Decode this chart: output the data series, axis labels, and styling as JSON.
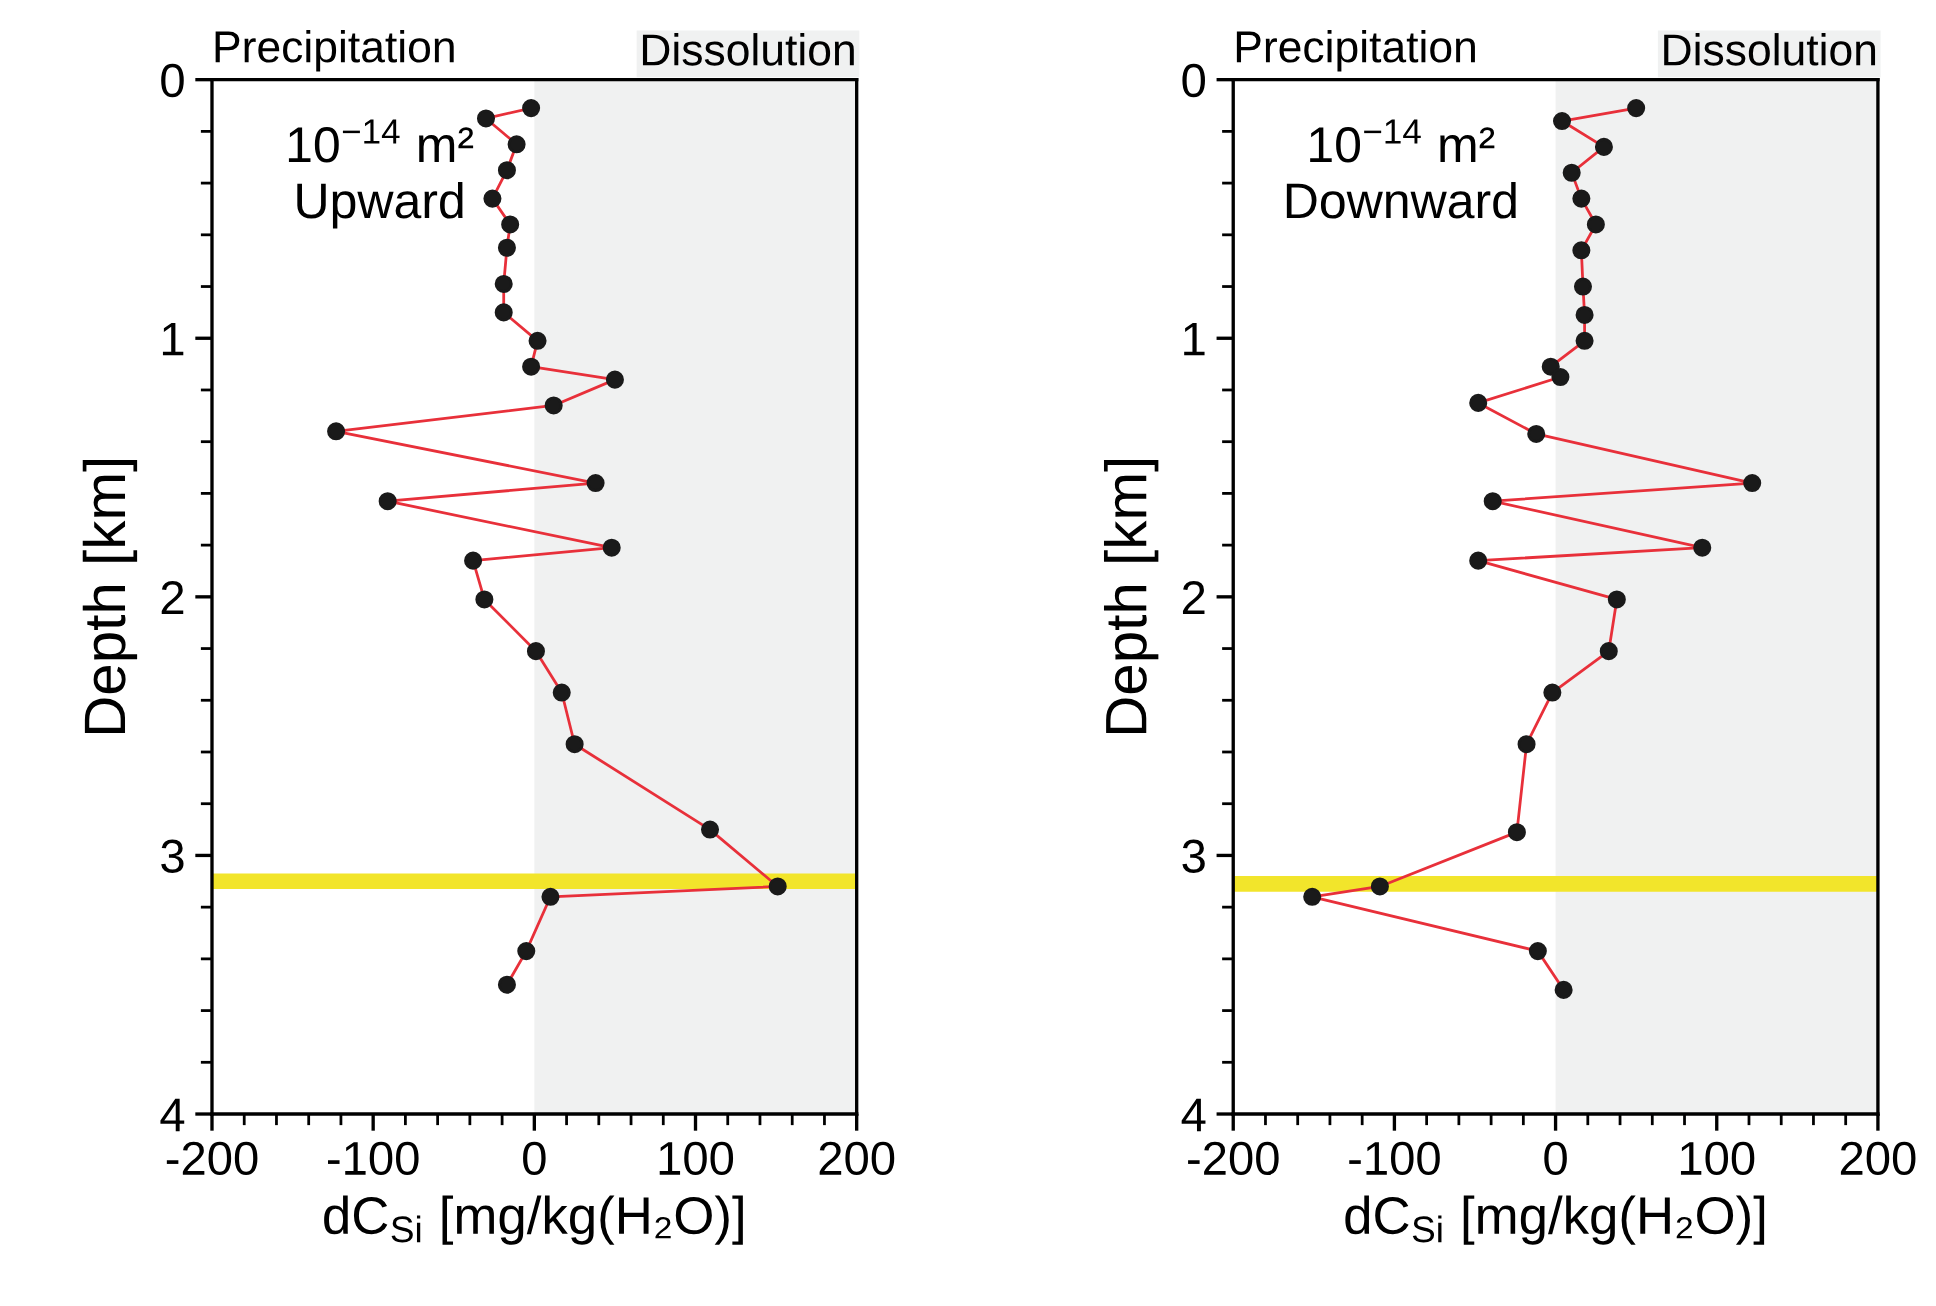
{
  "chart_data": [
    {
      "type": "line",
      "xlabel": "dC$_{Si}$ [mg/kg(H₂O)]",
      "ylabel": "Depth [km]",
      "xlim": [
        -200,
        200
      ],
      "xticks": [
        -200,
        -100,
        0,
        100,
        200
      ],
      "ylim": [
        4,
        0
      ],
      "yticks": [
        0,
        1,
        2,
        3,
        4
      ],
      "marker": "circle",
      "line_style": "solid",
      "grid": false,
      "legend": false,
      "annotations": [
        "Precipitation",
        "10$^{−14}$ m²\nUpward"
      ],
      "bands": [
        {
          "axis": "x",
          "from": 0,
          "to": 200,
          "label": "Dissolution",
          "color": "#f0f1f1"
        },
        {
          "axis": "y",
          "from": 3.07,
          "to": 3.13,
          "color": "#f2e52b"
        }
      ],
      "series": [
        {
          "color": "#e8303a",
          "x": [
            -2,
            -30,
            -11,
            -17,
            -26,
            -15,
            -17,
            -19,
            -19,
            2,
            -2,
            50,
            12,
            -123,
            38,
            -91,
            48,
            -38,
            -31,
            1,
            17,
            25,
            109,
            151,
            10,
            -5,
            -17
          ],
          "values": [
            0.11,
            0.15,
            0.25,
            0.35,
            0.46,
            0.56,
            0.65,
            0.79,
            0.9,
            1.01,
            1.11,
            1.16,
            1.26,
            1.36,
            1.56,
            1.63,
            1.81,
            1.86,
            2.01,
            2.21,
            2.37,
            2.57,
            2.9,
            3.12,
            3.16,
            3.37,
            3.5
          ]
        }
      ]
    },
    {
      "type": "line",
      "xlabel": "dC$_{Si}$ [mg/kg(H₂O)]",
      "ylabel": "Depth [km]",
      "xlim": [
        -200,
        200
      ],
      "xticks": [
        -200,
        -100,
        0,
        100,
        200
      ],
      "ylim": [
        4,
        0
      ],
      "yticks": [
        0,
        1,
        2,
        3,
        4
      ],
      "marker": "circle",
      "line_style": "solid",
      "grid": false,
      "legend": false,
      "annotations": [
        "Precipitation",
        "10$^{−14}$ m²\nDownward"
      ],
      "bands": [
        {
          "axis": "x",
          "from": 0,
          "to": 200,
          "label": "Dissolution",
          "color": "#f0f1f1"
        },
        {
          "axis": "y",
          "from": 3.08,
          "to": 3.14,
          "color": "#f2e52b"
        }
      ],
      "series": [
        {
          "color": "#e8303a",
          "x": [
            50,
            4,
            30,
            10,
            16,
            25,
            16,
            17,
            18,
            18,
            -3,
            3,
            -48,
            -12,
            122,
            -39,
            91,
            -48,
            38,
            33,
            -2,
            -18,
            -24,
            -109,
            -151,
            -11,
            5
          ],
          "values": [
            0.11,
            0.16,
            0.26,
            0.36,
            0.46,
            0.56,
            0.66,
            0.8,
            0.91,
            1.01,
            1.11,
            1.15,
            1.25,
            1.37,
            1.56,
            1.63,
            1.81,
            1.86,
            2.01,
            2.21,
            2.37,
            2.57,
            2.91,
            3.12,
            3.16,
            3.37,
            3.52
          ]
        }
      ]
    }
  ]
}
